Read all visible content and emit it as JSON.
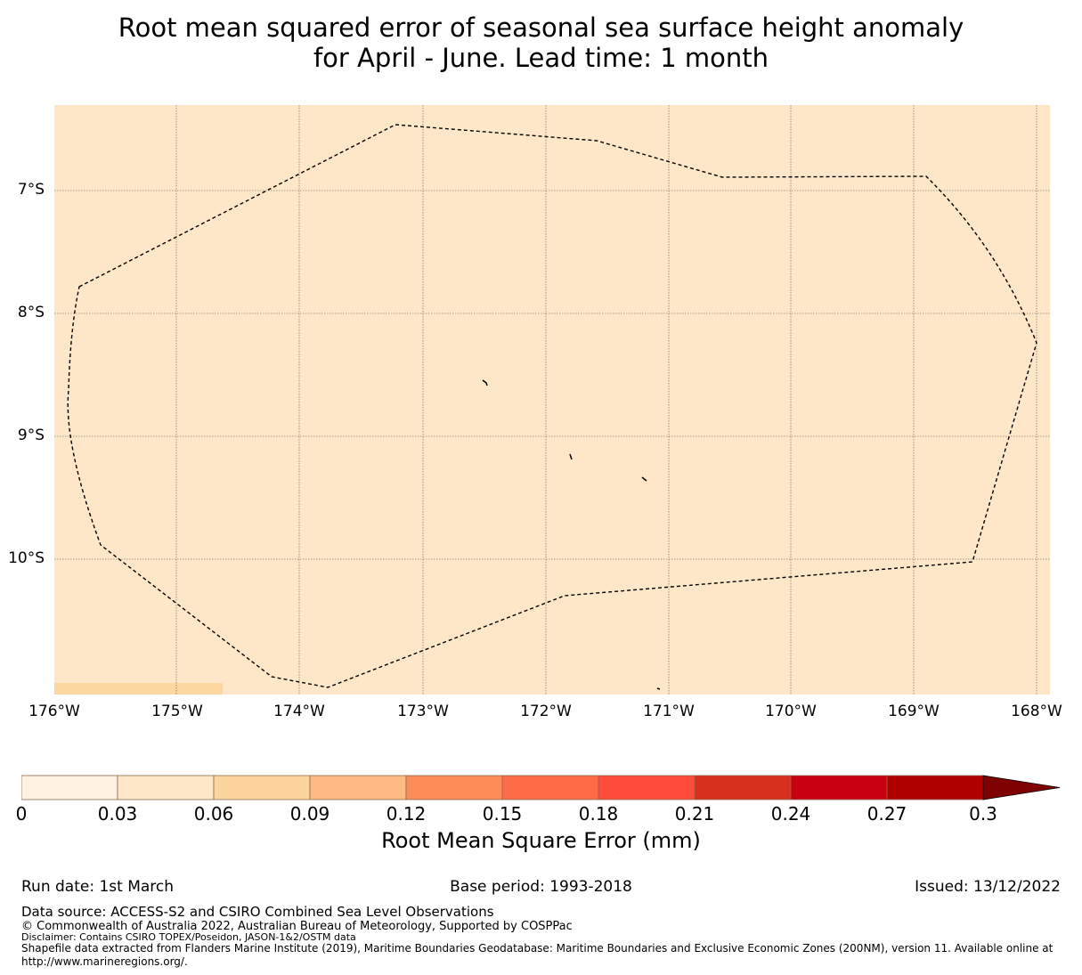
{
  "title_line1": "Root mean squared error of seasonal sea surface height anomaly",
  "title_line2": "for April - June. Lead time: 1 month",
  "map": {
    "background_color": "#fde7c8",
    "corner_patch_color": "#fed6a0",
    "y_ticks": [
      "7°S",
      "8°S",
      "9°S",
      "10°S"
    ],
    "x_ticks": [
      "176°W",
      "175°W",
      "174°W",
      "173°W",
      "172°W",
      "171°W",
      "170°W",
      "169°W",
      "168°W"
    ]
  },
  "colorbar": {
    "tick_labels": [
      "0",
      "0.03",
      "0.06",
      "0.09",
      "0.12",
      "0.15",
      "0.18",
      "0.21",
      "0.24",
      "0.27",
      "0.3"
    ],
    "colors": [
      "#fff1e0",
      "#fde7c8",
      "#fdd49e",
      "#fdbb84",
      "#fc8d59",
      "#fe6b47",
      "#ff4b3a",
      "#d7301f",
      "#c8000f",
      "#b00000",
      "#7f0000"
    ],
    "label": "Root Mean Square Error (mm)"
  },
  "footer": {
    "run_date": "Run date: 1st March",
    "base_period": "Base period: 1993-2018",
    "issued": "Issued: 13/12/2022",
    "data_source": "Data source: ACCESS-S2 and CSIRO Combined Sea Level Observations",
    "copyright": "© Commonwealth of Australia 2022, Australian Bureau of Meteorology, Supported by COSPPac",
    "disclaimer": "Disclaimer: Contains CSIRO TOPEX/Poseidon, JASON-1&2/OSTM data",
    "shapefile_line1": "Shapefile data extracted from Flanders Marine Institute (2019), Maritime Boundaries Geodatabase: Maritime Boundaries and Exclusive Economic Zones (200NM), version 11. Available online at",
    "shapefile_line2": "http://www.marineregions.org/."
  }
}
